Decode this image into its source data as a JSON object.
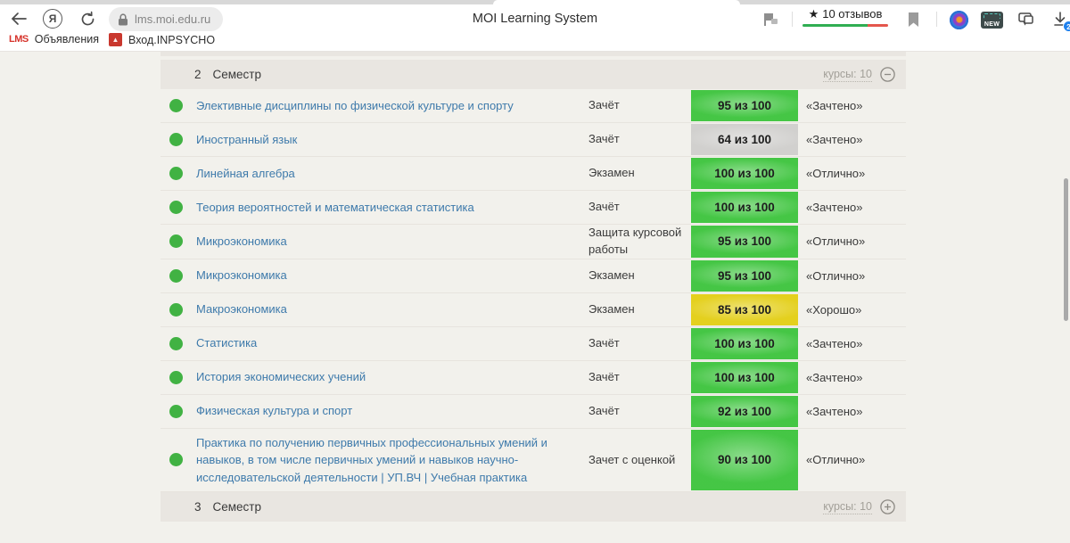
{
  "browser": {
    "yandex_letter": "Я",
    "url": "lms.moi.edu.ru",
    "page_title": "MOI Learning System",
    "reviews": {
      "star": "★",
      "label": "10 отзывов"
    },
    "new_badge_text": "NEW",
    "downloads_badge": "2",
    "bookmark_logo_text": "LMS",
    "bookmarks": [
      {
        "label": "Объявления"
      },
      {
        "label": "Вход.INPSYCHO"
      }
    ]
  },
  "sections": {
    "top": {
      "number": "2",
      "label": "Семестр",
      "courses": "курсы: 10",
      "state": "expanded"
    },
    "bottom": {
      "number": "3",
      "label": "Семестр",
      "courses": "курсы: 10",
      "state": "collapsed"
    }
  },
  "table": {
    "rows": [
      {
        "name": "Элективные дисциплины по физической культуре и спорту",
        "type": "Зачёт",
        "score": "95 из 100",
        "color": "green",
        "grade": "«Зачтено»"
      },
      {
        "name": "Иностранный язык",
        "type": "Зачёт",
        "score": "64 из 100",
        "color": "gray",
        "grade": "«Зачтено»"
      },
      {
        "name": "Линейная алгебра",
        "type": "Экзамен",
        "score": "100 из 100",
        "color": "green",
        "grade": "«Отлично»"
      },
      {
        "name": "Теория вероятностей и математическая статистика",
        "type": "Зачёт",
        "score": "100 из 100",
        "color": "green",
        "grade": "«Зачтено»"
      },
      {
        "name": "Микроэкономика",
        "type": "Защита курсовой работы",
        "score": "95 из 100",
        "color": "green",
        "grade": "«Отлично»"
      },
      {
        "name": "Микроэкономика",
        "type": "Экзамен",
        "score": "95 из 100",
        "color": "green",
        "grade": "«Отлично»"
      },
      {
        "name": "Макроэкономика",
        "type": "Экзамен",
        "score": "85 из 100",
        "color": "yellow",
        "grade": "«Хорошо»"
      },
      {
        "name": "Статистика",
        "type": "Зачёт",
        "score": "100 из 100",
        "color": "green",
        "grade": "«Зачтено»"
      },
      {
        "name": "История экономических учений",
        "type": "Зачёт",
        "score": "100 из 100",
        "color": "green",
        "grade": "«Зачтено»"
      },
      {
        "name": "Физическая культура и спорт",
        "type": "Зачёт",
        "score": "92 из 100",
        "color": "green",
        "grade": "«Зачтено»"
      },
      {
        "name": "Практика по получению первичных профессиональных умений и навыков, в том числе первичных умений и навыков научно-исследовательской деятельности | УП.ВЧ | Учебная практика",
        "type": "Зачет с оценкой",
        "score": "90 из 100",
        "color": "green",
        "grade": "«Отлично»"
      }
    ]
  },
  "colors": {
    "badge_green": "#49d149",
    "badge_gray": "#dcdbd9",
    "badge_yellow": "#f0db20",
    "status_dot": "#41b243",
    "course_link": "#3e7aab",
    "reviews_green": "#2fae52",
    "reviews_red": "#e4564c",
    "downloads_badge_bg": "#1f80ed"
  }
}
